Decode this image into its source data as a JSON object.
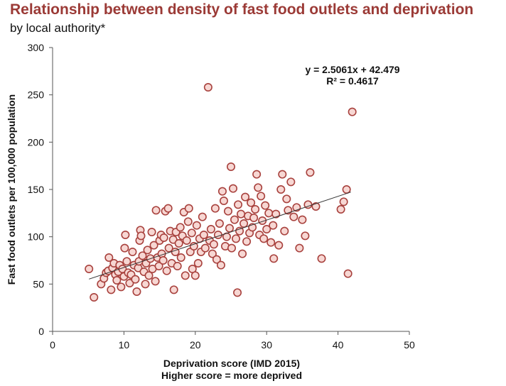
{
  "header": {
    "title": "Relationship between density of fast food outlets and deprivation",
    "subtitle": "by local authority*"
  },
  "chart_data": {
    "type": "scatter",
    "xlabel": "Deprivation score (IMD 2015)",
    "xlabel2": "Higher  score = more deprived",
    "ylabel": "Fast food outlets per 100,000 population",
    "xlim": [
      0,
      50
    ],
    "ylim": [
      0,
      300
    ],
    "xticks": [
      "0",
      "10",
      "20",
      "30",
      "40",
      "50"
    ],
    "yticks": [
      "0",
      "50",
      "100",
      "150",
      "200",
      "250",
      "300"
    ],
    "grid": false,
    "legend": "none",
    "colors": {
      "marker_fill": "#f7d7d3",
      "marker_edge": "#a8413d",
      "title": "#9b3a36"
    },
    "trendline": {
      "slope": 2.5061,
      "intercept": 42.479,
      "x_range": [
        5.1,
        41.8
      ]
    },
    "equation": "y = 2.5061x + 42.479",
    "r_squared": "R² = 0.4617",
    "points": [
      [
        5.1,
        66
      ],
      [
        5.8,
        36
      ],
      [
        6.8,
        50
      ],
      [
        7.2,
        56
      ],
      [
        7.5,
        62
      ],
      [
        7.8,
        64
      ],
      [
        7.9,
        78
      ],
      [
        8.2,
        44
      ],
      [
        8.4,
        67
      ],
      [
        8.6,
        72
      ],
      [
        8.8,
        60
      ],
      [
        9.0,
        54
      ],
      [
        9.2,
        63
      ],
      [
        9.4,
        70
      ],
      [
        9.6,
        47
      ],
      [
        9.8,
        66
      ],
      [
        10.0,
        58
      ],
      [
        10.1,
        88
      ],
      [
        10.2,
        102
      ],
      [
        10.4,
        74
      ],
      [
        10.6,
        62
      ],
      [
        10.8,
        51
      ],
      [
        11.0,
        60
      ],
      [
        11.2,
        84
      ],
      [
        11.4,
        70
      ],
      [
        11.6,
        55
      ],
      [
        11.8,
        42
      ],
      [
        12.0,
        67
      ],
      [
        12.1,
        74
      ],
      [
        12.2,
        96
      ],
      [
        12.3,
        107
      ],
      [
        12.4,
        101
      ],
      [
        12.6,
        80
      ],
      [
        12.8,
        63
      ],
      [
        13.0,
        50
      ],
      [
        13.1,
        72
      ],
      [
        13.3,
        86
      ],
      [
        13.5,
        59
      ],
      [
        13.7,
        77
      ],
      [
        13.9,
        105
      ],
      [
        14.0,
        66
      ],
      [
        14.2,
        91
      ],
      [
        14.4,
        53
      ],
      [
        14.5,
        128
      ],
      [
        14.7,
        78
      ],
      [
        14.9,
        69
      ],
      [
        15.0,
        96
      ],
      [
        15.2,
        102
      ],
      [
        15.3,
        82
      ],
      [
        15.5,
        75
      ],
      [
        15.6,
        99
      ],
      [
        15.8,
        127
      ],
      [
        16.0,
        64
      ],
      [
        16.2,
        130
      ],
      [
        16.3,
        88
      ],
      [
        16.5,
        106
      ],
      [
        16.7,
        72
      ],
      [
        16.9,
        97
      ],
      [
        17.0,
        44
      ],
      [
        17.2,
        84
      ],
      [
        17.3,
        105
      ],
      [
        17.5,
        69
      ],
      [
        17.7,
        93
      ],
      [
        17.9,
        110
      ],
      [
        18.0,
        78
      ],
      [
        18.2,
        101
      ],
      [
        18.4,
        126
      ],
      [
        18.6,
        59
      ],
      [
        18.8,
        96
      ],
      [
        19.0,
        116
      ],
      [
        19.1,
        130
      ],
      [
        19.3,
        84
      ],
      [
        19.5,
        104
      ],
      [
        19.6,
        66
      ],
      [
        19.8,
        90
      ],
      [
        20.0,
        59
      ],
      [
        20.2,
        112
      ],
      [
        20.4,
        72
      ],
      [
        20.6,
        98
      ],
      [
        20.8,
        84
      ],
      [
        21.0,
        121
      ],
      [
        21.2,
        102
      ],
      [
        21.4,
        88
      ],
      [
        21.8,
        258
      ],
      [
        22.0,
        96
      ],
      [
        22.2,
        108
      ],
      [
        22.4,
        82
      ],
      [
        22.6,
        92
      ],
      [
        22.8,
        130
      ],
      [
        23.0,
        76
      ],
      [
        23.2,
        102
      ],
      [
        23.4,
        114
      ],
      [
        23.6,
        70
      ],
      [
        23.8,
        148
      ],
      [
        24.0,
        138
      ],
      [
        24.2,
        90
      ],
      [
        24.4,
        100
      ],
      [
        24.6,
        127
      ],
      [
        24.8,
        109
      ],
      [
        25.0,
        174
      ],
      [
        25.1,
        88
      ],
      [
        25.3,
        151
      ],
      [
        25.5,
        118
      ],
      [
        25.7,
        98
      ],
      [
        25.9,
        41
      ],
      [
        26.0,
        134
      ],
      [
        26.2,
        106
      ],
      [
        26.4,
        124
      ],
      [
        26.6,
        82
      ],
      [
        26.8,
        114
      ],
      [
        27.0,
        142
      ],
      [
        27.2,
        95
      ],
      [
        27.4,
        122
      ],
      [
        27.6,
        104
      ],
      [
        27.8,
        136
      ],
      [
        28.0,
        110
      ],
      [
        28.2,
        120
      ],
      [
        28.4,
        129
      ],
      [
        28.6,
        166
      ],
      [
        28.8,
        152
      ],
      [
        29.0,
        102
      ],
      [
        29.2,
        143
      ],
      [
        29.4,
        117
      ],
      [
        29.6,
        98
      ],
      [
        29.8,
        133
      ],
      [
        30.0,
        108
      ],
      [
        30.3,
        125
      ],
      [
        30.6,
        94
      ],
      [
        30.9,
        112
      ],
      [
        31.0,
        77
      ],
      [
        31.3,
        124
      ],
      [
        31.7,
        91
      ],
      [
        32.0,
        150
      ],
      [
        32.2,
        166
      ],
      [
        32.5,
        106
      ],
      [
        32.8,
        140
      ],
      [
        33.0,
        128
      ],
      [
        33.4,
        158
      ],
      [
        33.8,
        121
      ],
      [
        34.2,
        131
      ],
      [
        34.6,
        88
      ],
      [
        35.0,
        118
      ],
      [
        35.4,
        101
      ],
      [
        35.8,
        134
      ],
      [
        36.1,
        168
      ],
      [
        36.9,
        132
      ],
      [
        37.7,
        77
      ],
      [
        40.4,
        129
      ],
      [
        40.8,
        137
      ],
      [
        41.2,
        150
      ],
      [
        41.4,
        61
      ],
      [
        42.0,
        232
      ]
    ]
  }
}
